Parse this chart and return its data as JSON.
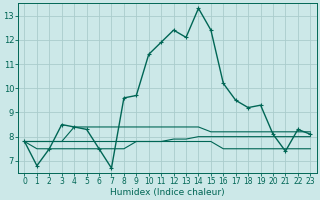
{
  "title": "",
  "xlabel": "Humidex (Indice chaleur)",
  "ylabel": "",
  "background_color": "#cce8e8",
  "grid_color": "#aacccc",
  "line_color": "#006655",
  "xlim": [
    -0.5,
    23.5
  ],
  "ylim": [
    6.5,
    13.5
  ],
  "xticks": [
    0,
    1,
    2,
    3,
    4,
    5,
    6,
    7,
    8,
    9,
    10,
    11,
    12,
    13,
    14,
    15,
    16,
    17,
    18,
    19,
    20,
    21,
    22,
    23
  ],
  "yticks": [
    7,
    8,
    9,
    10,
    11,
    12,
    13
  ],
  "series": [
    {
      "x": [
        0,
        1,
        2,
        3,
        4,
        5,
        6,
        7,
        8,
        9,
        10,
        11,
        12,
        13,
        14,
        15,
        16,
        17,
        18,
        19,
        20,
        21,
        22,
        23
      ],
      "y": [
        7.8,
        6.8,
        7.5,
        8.5,
        8.4,
        8.3,
        7.5,
        6.7,
        9.6,
        9.7,
        11.4,
        11.9,
        12.4,
        12.1,
        13.3,
        12.4,
        10.2,
        9.5,
        9.2,
        9.3,
        8.1,
        7.4,
        8.3,
        8.1
      ],
      "marker": "+",
      "linestyle": "-",
      "linewidth": 1.0
    },
    {
      "x": [
        0,
        1,
        2,
        3,
        4,
        5,
        6,
        7,
        8,
        9,
        10,
        11,
        12,
        13,
        14,
        15,
        16,
        17,
        18,
        19,
        20,
        21,
        22,
        23
      ],
      "y": [
        7.8,
        7.8,
        7.8,
        7.8,
        8.4,
        8.4,
        8.4,
        8.4,
        8.4,
        8.4,
        8.4,
        8.4,
        8.4,
        8.4,
        8.4,
        8.2,
        8.2,
        8.2,
        8.2,
        8.2,
        8.2,
        8.2,
        8.2,
        8.2
      ],
      "marker": null,
      "linestyle": "-",
      "linewidth": 0.8
    },
    {
      "x": [
        0,
        1,
        2,
        3,
        4,
        5,
        6,
        7,
        8,
        9,
        10,
        11,
        12,
        13,
        14,
        15,
        16,
        17,
        18,
        19,
        20,
        21,
        22,
        23
      ],
      "y": [
        7.8,
        7.8,
        7.8,
        7.8,
        7.8,
        7.8,
        7.8,
        7.8,
        7.8,
        7.8,
        7.8,
        7.8,
        7.9,
        7.9,
        8.0,
        8.0,
        8.0,
        8.0,
        8.0,
        8.0,
        8.0,
        8.0,
        8.0,
        8.0
      ],
      "marker": null,
      "linestyle": "-",
      "linewidth": 0.8
    },
    {
      "x": [
        0,
        1,
        2,
        3,
        4,
        5,
        6,
        7,
        8,
        9,
        10,
        11,
        12,
        13,
        14,
        15,
        16,
        17,
        18,
        19,
        20,
        21,
        22,
        23
      ],
      "y": [
        7.8,
        7.5,
        7.5,
        7.5,
        7.5,
        7.5,
        7.5,
        7.5,
        7.5,
        7.8,
        7.8,
        7.8,
        7.8,
        7.8,
        7.8,
        7.8,
        7.5,
        7.5,
        7.5,
        7.5,
        7.5,
        7.5,
        7.5,
        7.5
      ],
      "marker": null,
      "linestyle": "-",
      "linewidth": 0.8
    }
  ],
  "tick_fontsize": 5.5,
  "xlabel_fontsize": 6.5
}
